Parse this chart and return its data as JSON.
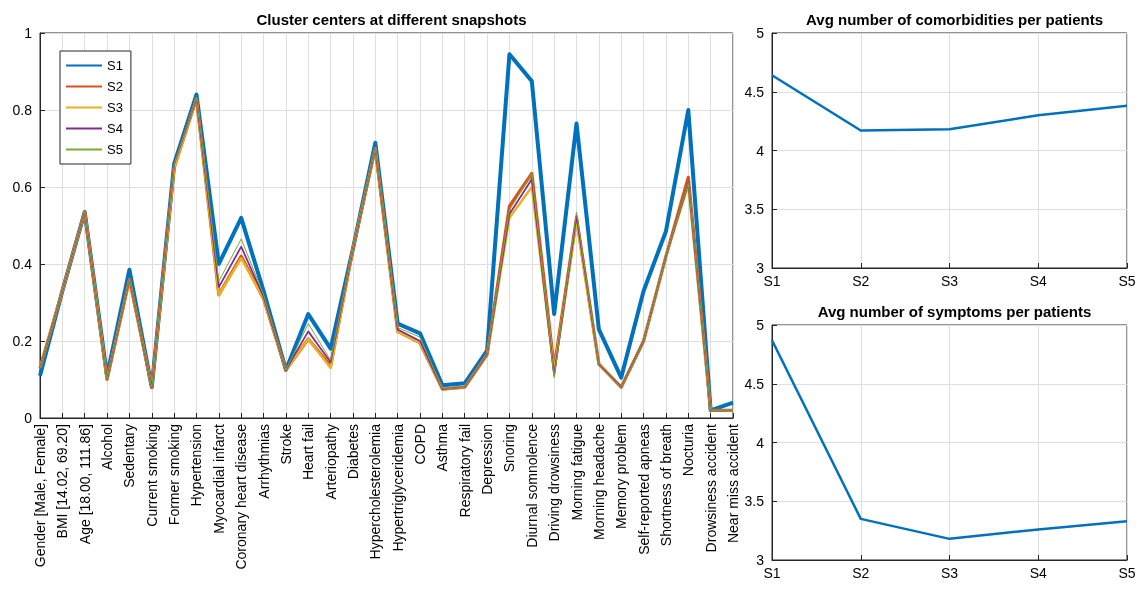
{
  "chart_data": [
    {
      "type": "line",
      "title": "Cluster centers at different snapshots",
      "categories": [
        "Gender [Male, Female]",
        "BMI [14.02, 69.20]",
        "Age [18.00, 111.86]",
        "Alcohol",
        "Sedentary",
        "Current smoking",
        "Former smoking",
        "Hypertension",
        "Myocardial infarct",
        "Coronary heart disease",
        "Arrhythmias",
        "Stroke",
        "Heart fail",
        "Arteriopathy",
        "Diabetes",
        "Hypercholesterolemia",
        "Hypertriglyceridemia",
        "COPD",
        "Asthma",
        "Respiratory fail",
        "Depression",
        "Snoring",
        "Diurnal somnolence",
        "Driving drowsiness",
        "Morning fatigue",
        "Morning headache",
        "Memory problem",
        "Self-reported apneas",
        "Shortness of breath",
        "Nocturia",
        "Drowsiness accident",
        "Near miss accident"
      ],
      "series": [
        {
          "name": "S1",
          "color": "#0072bd",
          "values": [
            0.11,
            0.33,
            0.535,
            0.11,
            0.385,
            0.08,
            0.66,
            0.84,
            0.4,
            0.52,
            0.33,
            0.125,
            0.27,
            0.18,
            0.44,
            0.715,
            0.245,
            0.22,
            0.085,
            0.09,
            0.175,
            0.945,
            0.875,
            0.27,
            0.765,
            0.23,
            0.105,
            0.33,
            0.485,
            0.8,
            0.02,
            0.04
          ]
        },
        {
          "name": "S2",
          "color": "#d95319",
          "values": [
            0.13,
            0.33,
            0.535,
            0.1,
            0.36,
            0.08,
            0.65,
            0.83,
            0.32,
            0.42,
            0.31,
            0.125,
            0.205,
            0.135,
            0.44,
            0.7,
            0.225,
            0.195,
            0.075,
            0.08,
            0.165,
            0.55,
            0.635,
            0.13,
            0.52,
            0.14,
            0.08,
            0.2,
            0.42,
            0.625,
            0.02,
            0.02
          ]
        },
        {
          "name": "S3",
          "color": "#edb120",
          "values": [
            0.13,
            0.33,
            0.535,
            0.1,
            0.36,
            0.08,
            0.65,
            0.83,
            0.32,
            0.415,
            0.31,
            0.125,
            0.205,
            0.13,
            0.44,
            0.7,
            0.225,
            0.195,
            0.075,
            0.08,
            0.165,
            0.52,
            0.6,
            0.12,
            0.51,
            0.14,
            0.08,
            0.2,
            0.42,
            0.605,
            0.02,
            0.02
          ]
        },
        {
          "name": "S4",
          "color": "#7e2f8e",
          "values": [
            0.13,
            0.33,
            0.535,
            0.1,
            0.36,
            0.08,
            0.66,
            0.83,
            0.34,
            0.445,
            0.315,
            0.125,
            0.225,
            0.145,
            0.44,
            0.7,
            0.23,
            0.2,
            0.075,
            0.08,
            0.165,
            0.53,
            0.62,
            0.11,
            0.525,
            0.14,
            0.08,
            0.2,
            0.42,
            0.61,
            0.02,
            0.02
          ]
        },
        {
          "name": "S5",
          "color": "#77ac30",
          "values": [
            0.13,
            0.33,
            0.535,
            0.1,
            0.36,
            0.08,
            0.66,
            0.83,
            0.355,
            0.465,
            0.32,
            0.125,
            0.245,
            0.15,
            0.44,
            0.7,
            0.235,
            0.21,
            0.075,
            0.08,
            0.165,
            0.54,
            0.635,
            0.105,
            0.535,
            0.14,
            0.08,
            0.2,
            0.42,
            0.61,
            0.02,
            0.02
          ]
        }
      ],
      "ylim": [
        0,
        1
      ],
      "yticks": [
        0,
        0.2,
        0.4,
        0.6,
        0.8,
        1
      ],
      "grid": true,
      "legend": "top left"
    },
    {
      "type": "line",
      "title": "Avg number of comorbidities per patients",
      "categories": [
        "S1",
        "S2",
        "S3",
        "S4",
        "S5"
      ],
      "series": [
        {
          "color": "#0072bd",
          "values": [
            4.64,
            4.17,
            4.18,
            4.3,
            4.38
          ]
        }
      ],
      "ylim": [
        3,
        5
      ],
      "yticks": [
        3,
        3.5,
        4,
        4.5,
        5
      ],
      "grid": true
    },
    {
      "type": "line",
      "title": "Avg number of symptoms per patients",
      "categories": [
        "S1",
        "S2",
        "S3",
        "S4",
        "S5"
      ],
      "series": [
        {
          "color": "#0072bd",
          "values": [
            4.87,
            3.35,
            3.18,
            3.26,
            3.33
          ]
        }
      ],
      "ylim": [
        3,
        5
      ],
      "yticks": [
        3,
        3.5,
        4,
        4.5,
        5
      ],
      "grid": true
    }
  ]
}
